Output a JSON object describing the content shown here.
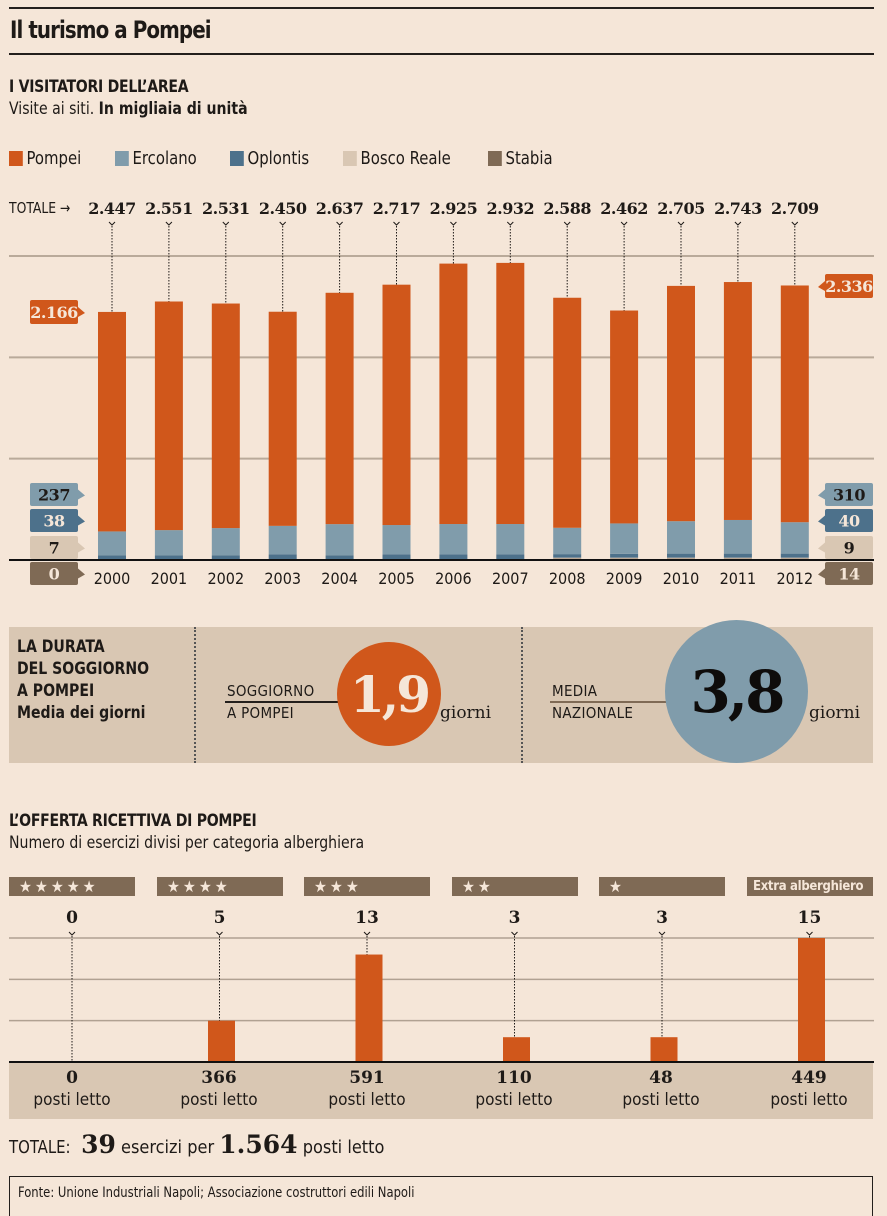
{
  "header": {
    "title": "Il turismo a Pompei"
  },
  "visitors": {
    "title": "I VISITATORI DELL’AREA",
    "subtitle_plain": "Visite ai siti.",
    "subtitle_bold": "In migliaia di unità",
    "totale_label": "TOTALE →",
    "first_year_labels": {
      "pompei": "2.166",
      "ercolano": "237",
      "oplontis": "38",
      "bosco_reale": "7",
      "stabia": "0"
    },
    "last_year_labels": {
      "pompei": "2.336",
      "ercolano": "310",
      "oplontis": "40",
      "bosco_reale": "9",
      "stabia": "14"
    }
  },
  "stay": {
    "title_lines": [
      "LA DURATA",
      "DEL SOGGIORNO",
      "A POMPEI"
    ],
    "title_sub": "Media dei giorni",
    "pompei_label_lines": [
      "SOGGIORNO",
      "A POMPEI"
    ],
    "pompei_value": "1,9",
    "national_label_lines": [
      "MEDIA",
      "NAZIONALE"
    ],
    "national_value": "3,8",
    "unit": "giorni"
  },
  "offer": {
    "title": "L’OFFERTA RICETTIVA DI POMPEI",
    "subtitle": "Numero di esercizi divisi per categoria alberghiera",
    "bed_unit": "posti letto",
    "totale": {
      "label": "TOTALE:",
      "esercizi": "39",
      "mid": "esercizi per",
      "posti": "1.564",
      "end": "posti letto"
    }
  },
  "source": "Fonte: Unione Industriali Napoli; Associazione costruttori edili Napoli",
  "colors": {
    "pompei": "#d0571b",
    "ercolano": "#809cab",
    "oplontis": "#4d718b",
    "bosco_reale": "#d9c7b3",
    "stabia": "#7f6a55",
    "background": "#f5e6d8"
  },
  "chart_data": [
    {
      "type": "bar",
      "stacked": true,
      "title": "I VISITATORI DELL’AREA",
      "subtitle": "Visite ai siti. In migliaia di unità",
      "categories": [
        "2000",
        "2001",
        "2002",
        "2003",
        "2004",
        "2005",
        "2006",
        "2007",
        "2008",
        "2009",
        "2010",
        "2011",
        "2012"
      ],
      "totals": [
        "2.447",
        "2.551",
        "2.531",
        "2.450",
        "2.637",
        "2.717",
        "2.925",
        "2.932",
        "2.588",
        "2.462",
        "2.705",
        "2.743",
        "2.709"
      ],
      "totals_values": [
        2447,
        2551,
        2531,
        2450,
        2637,
        2717,
        2925,
        2932,
        2588,
        2462,
        2705,
        2743,
        2709
      ],
      "series": [
        {
          "name": "Stabia",
          "key": "stabia",
          "values": [
            0,
            0,
            0,
            0,
            0,
            0,
            0,
            0,
            14,
            14,
            14,
            14,
            14
          ]
        },
        {
          "name": "Bosco Reale",
          "key": "bosco_reale",
          "values": [
            7,
            7,
            7,
            7,
            7,
            7,
            7,
            7,
            9,
            9,
            9,
            9,
            9
          ]
        },
        {
          "name": "Oplontis",
          "key": "oplontis",
          "values": [
            38,
            38,
            38,
            48,
            38,
            48,
            48,
            48,
            35,
            38,
            40,
            40,
            40
          ]
        },
        {
          "name": "Ercolano",
          "key": "ercolano",
          "values": [
            237,
            250,
            270,
            282,
            309,
            290,
            300,
            300,
            260,
            300,
            320,
            332,
            310
          ]
        },
        {
          "name": "Pompei",
          "key": "pompei",
          "values": [
            2166,
            2256,
            2216,
            2113,
            2283,
            2372,
            2570,
            2577,
            2270,
            2101,
            2322,
            2348,
            2336
          ]
        }
      ],
      "legend": [
        "Pompei",
        "Ercolano",
        "Oplontis",
        "Bosco Reale",
        "Stabia"
      ],
      "legend_position": "top-left",
      "ylim": [
        0,
        3000
      ],
      "grid": true,
      "xlabel": "",
      "ylabel": ""
    },
    {
      "type": "bar",
      "title": "L’OFFERTA RICETTIVA DI POMPEI",
      "subtitle": "Numero di esercizi divisi per categoria alberghiera",
      "categories": [
        "★★★★★",
        "★★★★",
        "★★★",
        "★★",
        "★",
        "Extra alberghiero"
      ],
      "values": [
        0,
        5,
        13,
        3,
        3,
        15
      ],
      "beds": [
        "0",
        "366",
        "591",
        "110",
        "48",
        "449"
      ],
      "ylim": [
        0,
        15
      ],
      "grid": true,
      "xlabel": "",
      "ylabel": ""
    }
  ]
}
